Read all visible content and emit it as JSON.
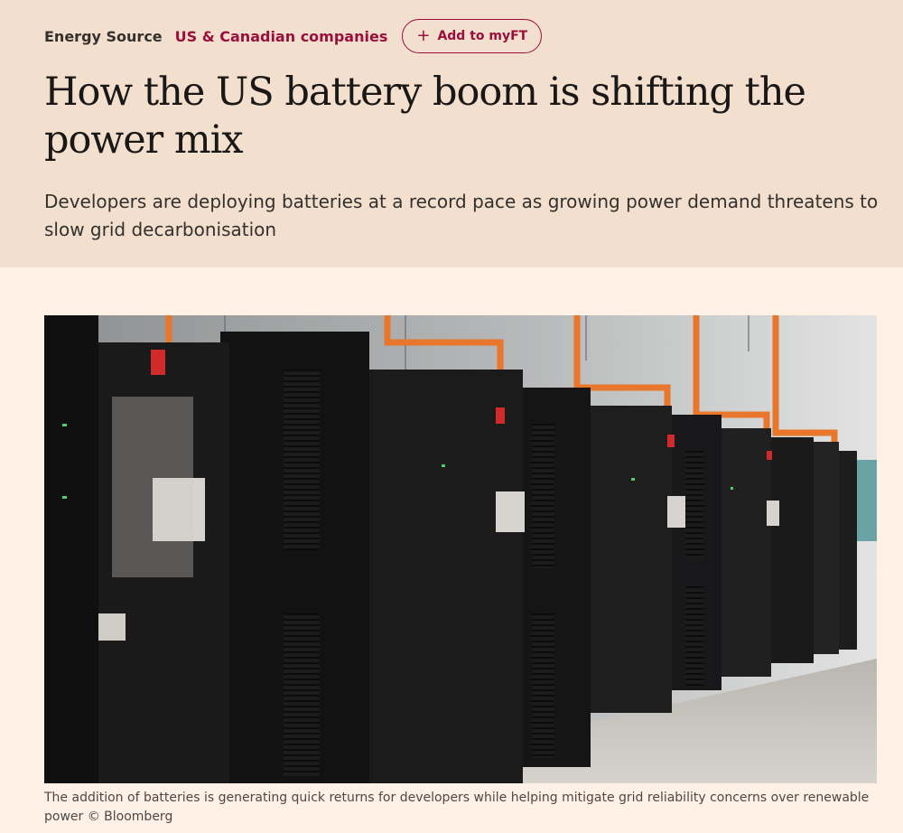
{
  "article": {
    "section": "Energy Source",
    "topic": "US & Canadian companies",
    "myft_button": {
      "icon": "plus-icon",
      "label": "Add to myFT"
    },
    "headline": "How the US battery boom is shifting the power mix",
    "standfirst": "Developers are deploying batteries at a record pace as growing power demand threatens to slow grid decarbonisation",
    "caption": "The addition of batteries is generating quick returns for developers while helping mitigate grid reliability concerns over renewable power © Bloomberg"
  },
  "colors": {
    "header_background": "#f2dfce",
    "page_background": "#fff1e5",
    "accent": "#990f3d"
  }
}
